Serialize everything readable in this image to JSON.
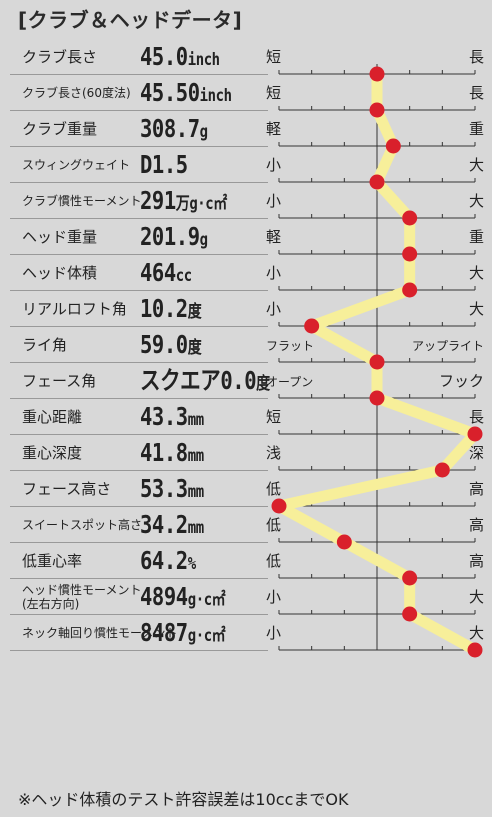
{
  "title": "[クラブ＆ヘッドデータ]",
  "footnote": "※ヘッド体積のテスト許容誤差は10ccまでOK",
  "colors": {
    "line": "#f7ef9a",
    "marker": "#d9202b",
    "axis": "#333333",
    "background": "#d8d8d8"
  },
  "chart_data": {
    "type": "line",
    "orientation": "horizontal-profile",
    "scale": [
      1,
      7
    ],
    "rows": [
      {
        "label": "クラブ長さ",
        "value": "45.0",
        "unit": "inch",
        "left": "短",
        "right": "長",
        "position": 4
      },
      {
        "label": "クラブ長さ(60度法)",
        "value": "45.50",
        "unit": "inch",
        "left": "短",
        "right": "長",
        "position": 4
      },
      {
        "label": "クラブ重量",
        "value": "308.7",
        "unit": "g",
        "left": "軽",
        "right": "重",
        "position": 4.5
      },
      {
        "label": "スウィングウェイト",
        "value": "D1.5",
        "unit": "",
        "left": "小",
        "right": "大",
        "position": 4
      },
      {
        "label": "クラブ慣性モーメント",
        "value": "291",
        "unit": "万g·c㎡",
        "left": "小",
        "right": "大",
        "position": 5
      },
      {
        "label": "ヘッド重量",
        "value": "201.9",
        "unit": "g",
        "left": "軽",
        "right": "重",
        "position": 5
      },
      {
        "label": "ヘッド体積",
        "value": "464",
        "unit": "cc",
        "left": "小",
        "right": "大",
        "position": 5
      },
      {
        "label": "リアルロフト角",
        "value": "10.2",
        "unit": "度",
        "left": "小",
        "right": "大",
        "position": 2
      },
      {
        "label": "ライ角",
        "value": "59.0",
        "unit": "度",
        "left": "フラット",
        "right": "アップライト",
        "position": 4
      },
      {
        "label": "フェース角",
        "value": "スクエア0.0",
        "unit": "度",
        "left": "オープン",
        "right": "フック",
        "position": 4
      },
      {
        "label": "重心距離",
        "value": "43.3",
        "unit": "mm",
        "left": "短",
        "right": "長",
        "position": 7
      },
      {
        "label": "重心深度",
        "value": "41.8",
        "unit": "mm",
        "left": "浅",
        "right": "深",
        "position": 6
      },
      {
        "label": "フェース高さ",
        "value": "53.3",
        "unit": "mm",
        "left": "低",
        "right": "高",
        "position": 1
      },
      {
        "label": "スイートスポット高さ",
        "value": "34.2",
        "unit": "mm",
        "left": "低",
        "right": "高",
        "position": 3
      },
      {
        "label": "低重心率",
        "value": "64.2",
        "unit": "%",
        "left": "低",
        "right": "高",
        "position": 5
      },
      {
        "label": "ヘッド慣性モーメント(左右方向)",
        "label_lines": [
          "ヘッド慣性モーメント",
          "(左右方向)"
        ],
        "value": "4894",
        "unit": "g·c㎡",
        "left": "小",
        "right": "大",
        "position": 5
      },
      {
        "label": "ネック軸回り慣性モーメント",
        "value": "8487",
        "unit": "g·c㎡",
        "left": "小",
        "right": "大",
        "position": 7
      }
    ]
  }
}
